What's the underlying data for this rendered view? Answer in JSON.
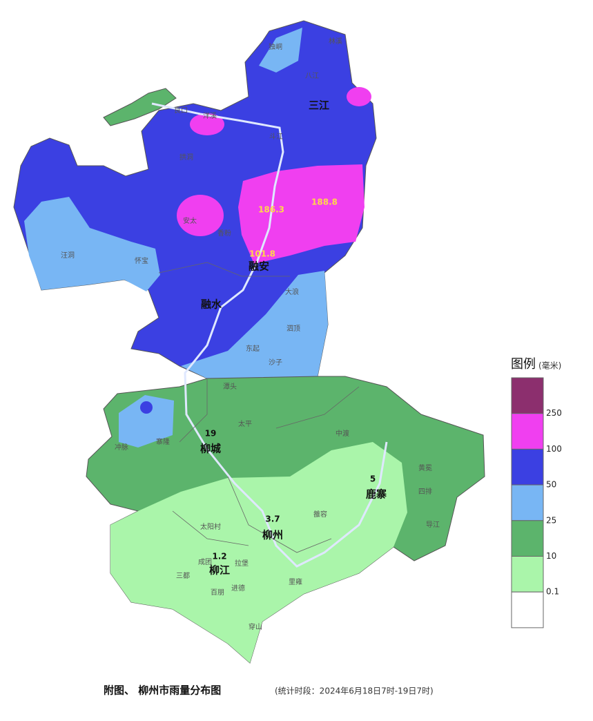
{
  "legend": {
    "title": "图例",
    "unit": "(毫米)",
    "colors": [
      "#8c2f6e",
      "#f03ff0",
      "#3b40e2",
      "#78b6f4",
      "#5cb46c",
      "#aaf5aa",
      "#ffffff"
    ],
    "breaks": [
      250,
      100,
      50,
      25,
      10,
      0.1
    ]
  },
  "counties": [
    "三江",
    "融安",
    "融水",
    "柳城",
    "鹿寨",
    "柳州",
    "柳江"
  ],
  "rainfall": [
    188.8,
    186.3,
    101.8,
    19,
    5,
    3.7,
    1.2
  ],
  "towns": [
    "独峒",
    "林溪",
    "八江",
    "洋溪",
    "良口",
    "斗江",
    "拱洞",
    "安太",
    "汪洞",
    "怀宝",
    "香粉",
    "大浪",
    "泗顶",
    "东起",
    "沙子",
    "潭头",
    "太平",
    "冲脉",
    "寨隆",
    "中渡",
    "黄冕",
    "四排",
    "导江",
    "拉堡",
    "成团",
    "三都",
    "百朋",
    "进德",
    "穿山",
    "里雍",
    "雒容",
    "太阳村"
  ],
  "caption": {
    "title": "附图、 柳州市雨量分布图",
    "period": "(统计时段：2024年6月18日7时-19日7时)"
  }
}
